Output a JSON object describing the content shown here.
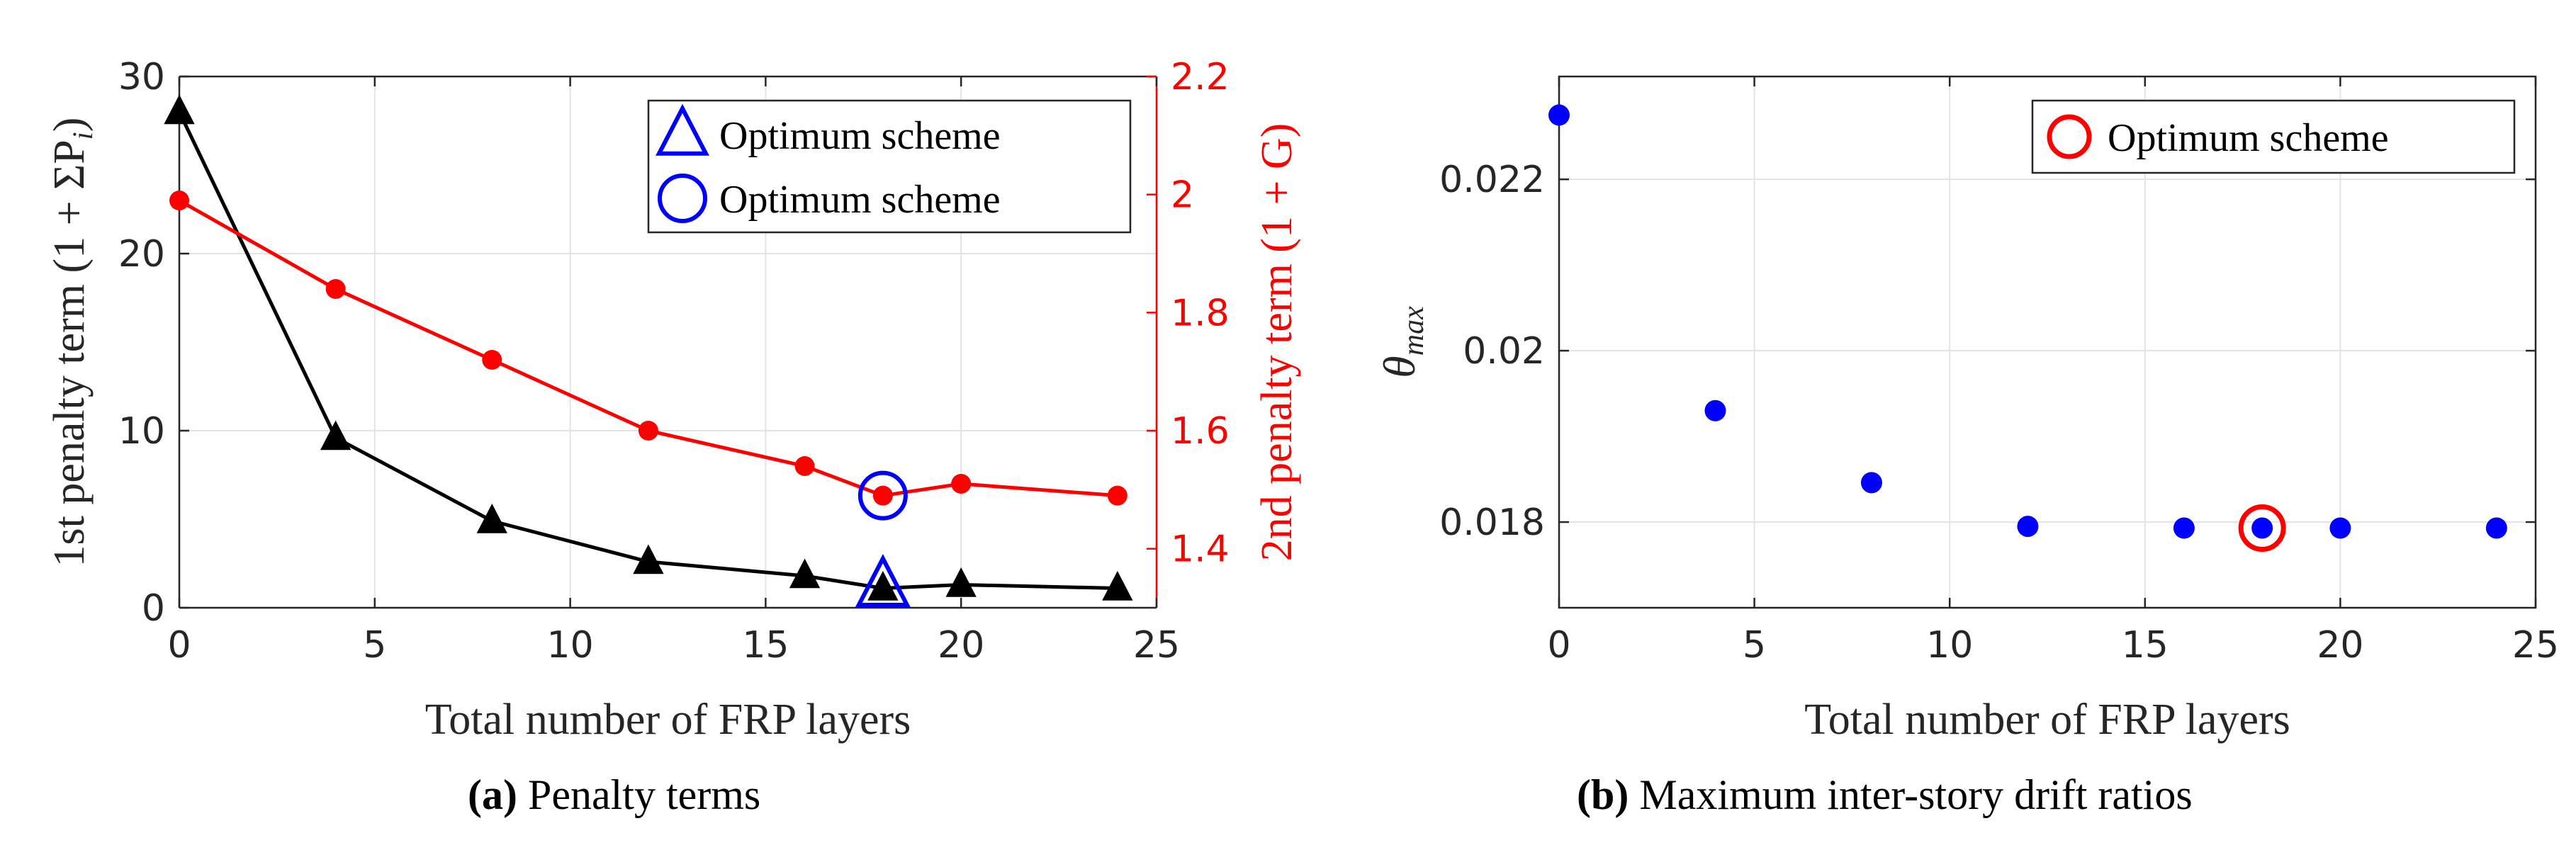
{
  "chart_data": [
    {
      "type": "line",
      "caption_tag": "(a)",
      "caption_text": "Penalty terms",
      "xlabel": "Total number of FRP layers",
      "ylabel_left": "1st penalty term (1 + ΣP",
      "ylabel_left_sub": "i",
      "ylabel_left_end": ")",
      "ylabel_right": "2nd penalty term (1 + G)",
      "xlim": [
        0,
        25
      ],
      "ylim_left": [
        0,
        30
      ],
      "ylim_right": [
        1.3,
        2.2
      ],
      "xticks": [
        "0",
        "5",
        "10",
        "15",
        "20",
        "25"
      ],
      "yticks_left": [
        "0",
        "10",
        "20",
        "30"
      ],
      "yticks_right": [
        "1.4",
        "1.6",
        "1.8",
        "2",
        "2.2"
      ],
      "grid": true,
      "series": [
        {
          "name": "1st penalty term",
          "axis": "left",
          "color": "#000000",
          "marker": "triangle",
          "x": [
            0,
            4,
            8,
            12,
            16,
            18,
            20,
            24
          ],
          "y": [
            28.0,
            9.6,
            4.9,
            2.6,
            1.8,
            1.1,
            1.3,
            1.1
          ]
        },
        {
          "name": "2nd penalty term",
          "axis": "right",
          "color": "#ff0000",
          "marker": "circle",
          "x": [
            0,
            4,
            8,
            12,
            16,
            18,
            20,
            24
          ],
          "y": [
            1.99,
            1.84,
            1.72,
            1.6,
            1.54,
            1.49,
            1.51,
            1.49
          ]
        }
      ],
      "optimum": [
        {
          "axis": "left",
          "marker": "triangle",
          "x": 18,
          "y": 1.1,
          "color": "#0000ff"
        },
        {
          "axis": "right",
          "marker": "circle",
          "x": 18,
          "y": 1.49,
          "color": "#0000ff"
        }
      ],
      "legend": [
        {
          "marker": "triangle",
          "color": "#0000ff",
          "label": "Optimum scheme"
        },
        {
          "marker": "circle",
          "color": "#0000ff",
          "label": "Optimum scheme"
        }
      ],
      "legend_position": "top-right"
    },
    {
      "type": "scatter",
      "caption_tag": "(b)",
      "caption_text": "Maximum inter-story drift ratios",
      "xlabel": "Total number of FRP layers",
      "ylabel": "θ",
      "ylabel_sub": "max",
      "xlim": [
        0,
        25
      ],
      "ylim": [
        0.017,
        0.0232
      ],
      "xticks": [
        "0",
        "5",
        "10",
        "15",
        "20",
        "25"
      ],
      "yticks": [
        "0.018",
        "0.02",
        "0.022"
      ],
      "grid": true,
      "series": [
        {
          "name": "θmax",
          "color": "#0000ff",
          "marker": "circle",
          "x": [
            0,
            4,
            8,
            12,
            16,
            18,
            20,
            24
          ],
          "y": [
            0.02275,
            0.0193,
            0.01846,
            0.01795,
            0.01793,
            0.01793,
            0.01793,
            0.01793
          ]
        }
      ],
      "optimum": [
        {
          "marker": "circle",
          "x": 18,
          "y": 0.01793,
          "color": "#ff0000"
        }
      ],
      "legend": [
        {
          "marker": "circle",
          "color": "#ff0000",
          "label": "Optimum scheme"
        }
      ],
      "legend_position": "top-right"
    }
  ]
}
